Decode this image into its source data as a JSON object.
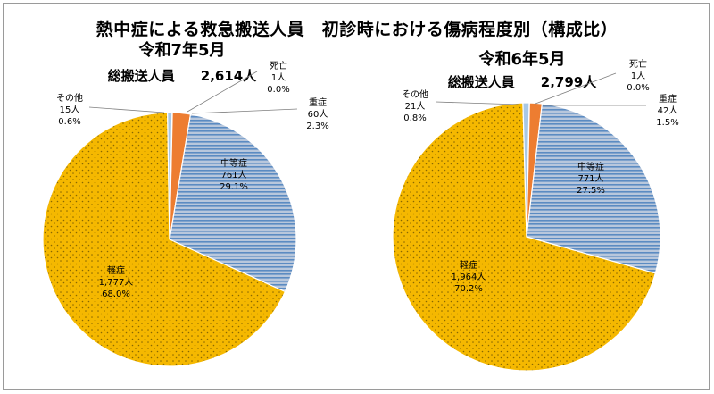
{
  "title": "熱中症による救急搬送人員　初診時における傷病程度別（構成比）",
  "colors": {
    "death": "#1f4e9a",
    "severe": "#ed7d31",
    "moderate_fill": "#b8c7dc",
    "moderate_stripe": "#5b8bc2",
    "mild": "#f5b800",
    "mild_dot": "#8a6800",
    "other": "#a8c8e6",
    "leader": "#7f7f7f"
  },
  "chart_data": [
    {
      "type": "pie",
      "title": "令和7年5月",
      "total_label": "総搬送人員",
      "total_value": "2,614人",
      "slices": [
        {
          "key": "death",
          "name": "死亡",
          "count": "1人",
          "pct": "0.0%",
          "value": 1
        },
        {
          "key": "severe",
          "name": "重症",
          "count": "60人",
          "pct": "2.3%",
          "value": 60
        },
        {
          "key": "moderate",
          "name": "中等症",
          "count": "761人",
          "pct": "29.1%",
          "value": 761
        },
        {
          "key": "mild",
          "name": "軽症",
          "count": "1,777人",
          "pct": "68.0%",
          "value": 1777
        },
        {
          "key": "other",
          "name": "その他",
          "count": "15人",
          "pct": "0.6%",
          "value": 15
        }
      ]
    },
    {
      "type": "pie",
      "title": "令和6年5月",
      "total_label": "総搬送人員",
      "total_value": "2,799人",
      "slices": [
        {
          "key": "death",
          "name": "死亡",
          "count": "1人",
          "pct": "0.0%",
          "value": 1
        },
        {
          "key": "severe",
          "name": "重症",
          "count": "42人",
          "pct": "1.5%",
          "value": 42
        },
        {
          "key": "moderate",
          "name": "中等症",
          "count": "771人",
          "pct": "27.5%",
          "value": 771
        },
        {
          "key": "mild",
          "name": "軽症",
          "count": "1,964人",
          "pct": "70.2%",
          "value": 1964
        },
        {
          "key": "other",
          "name": "その他",
          "count": "21人",
          "pct": "0.8%",
          "value": 21
        }
      ]
    }
  ]
}
